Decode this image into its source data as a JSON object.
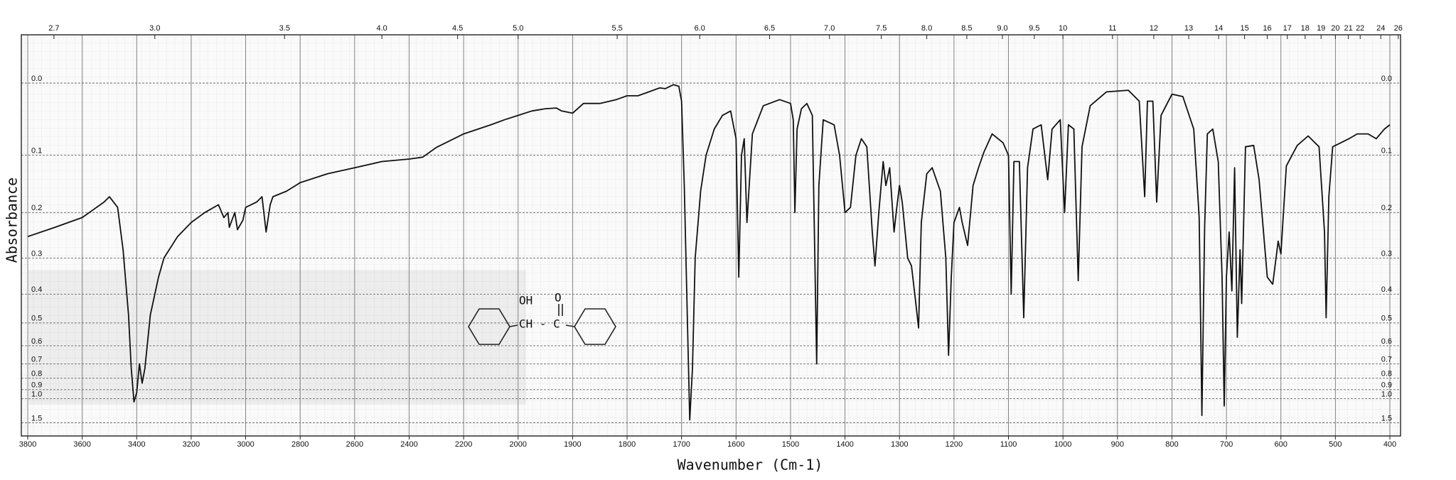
{
  "chart_data": {
    "type": "line",
    "x_label": "Wavenumber (Cm-1)",
    "y_label": "Absorbance",
    "color": "#111111",
    "grid": true,
    "xticks": [
      3800,
      3600,
      3400,
      3200,
      3000,
      2800,
      2600,
      2400,
      2200,
      2000,
      1900,
      1800,
      1700,
      1600,
      1500,
      1400,
      1300,
      1200,
      1100,
      1000,
      900,
      800,
      700,
      600,
      500,
      400
    ],
    "x2ticks": [
      2.7,
      {
        "value": 3,
        "label": "3.0"
      },
      3.5,
      {
        "value": 4,
        "label": "4.0"
      },
      4.5,
      {
        "value": 5,
        "label": "5.0"
      },
      5.5,
      {
        "value": 6,
        "label": "6.0"
      },
      6.5,
      {
        "value": 7,
        "label": "7.0"
      },
      7.5,
      {
        "value": 8,
        "label": "8.0"
      },
      8.5,
      {
        "value": 9,
        "label": "9.0"
      },
      9.5,
      10,
      11,
      12,
      13,
      14,
      15,
      16,
      17,
      18,
      19,
      20,
      21,
      22,
      24,
      26
    ],
    "yticks": [
      {
        "value": 0,
        "label": "0.0"
      },
      0.1,
      0.2,
      0.3,
      0.4,
      0.5,
      0.6,
      0.7,
      0.8,
      0.9,
      {
        "value": 1,
        "label": "1.0"
      },
      1.5
    ],
    "annotations": [
      "OH",
      "O",
      "CH - C"
    ],
    "x": [
      3800,
      3700,
      3600,
      3520,
      3500,
      3470,
      3450,
      3430,
      3420,
      3410,
      3400,
      3390,
      3380,
      3370,
      3350,
      3320,
      3300,
      3250,
      3200,
      3150,
      3100,
      3080,
      3065,
      3060,
      3040,
      3030,
      3010,
      3000,
      2980,
      2960,
      2940,
      2925,
      2910,
      2900,
      2850,
      2800,
      2700,
      2600,
      2500,
      2400,
      2350,
      2300,
      2200,
      2100,
      2050,
      2000,
      1975,
      1950,
      1930,
      1920,
      1900,
      1880,
      1850,
      1820,
      1800,
      1780,
      1760,
      1740,
      1730,
      1715,
      1705,
      1700,
      1695,
      1690,
      1685,
      1680,
      1675,
      1665,
      1655,
      1640,
      1625,
      1610,
      1600,
      1595,
      1590,
      1585,
      1580,
      1570,
      1550,
      1520,
      1500,
      1495,
      1492,
      1488,
      1480,
      1470,
      1460,
      1452,
      1448,
      1440,
      1420,
      1410,
      1400,
      1390,
      1380,
      1370,
      1360,
      1350,
      1345,
      1338,
      1330,
      1325,
      1318,
      1310,
      1305,
      1300,
      1295,
      1285,
      1278,
      1270,
      1265,
      1260,
      1250,
      1240,
      1225,
      1215,
      1210,
      1205,
      1200,
      1190,
      1185,
      1175,
      1165,
      1155,
      1145,
      1130,
      1110,
      1100,
      1095,
      1090,
      1080,
      1072,
      1065,
      1055,
      1040,
      1028,
      1020,
      1005,
      997,
      990,
      980,
      972,
      965,
      950,
      920,
      880,
      860,
      850,
      845,
      835,
      828,
      820,
      800,
      780,
      760,
      750,
      745,
      740,
      735,
      725,
      715,
      708,
      704,
      700,
      695,
      690,
      685,
      680,
      675,
      672,
      665,
      650,
      640,
      625,
      615,
      605,
      600,
      590,
      570,
      550,
      530,
      520,
      517,
      512,
      505,
      490,
      475,
      460,
      440,
      425,
      410,
      400
    ],
    "values": [
      0.25,
      0.23,
      0.21,
      0.18,
      0.17,
      0.19,
      0.28,
      0.47,
      0.73,
      1.04,
      0.93,
      0.7,
      0.84,
      0.73,
      0.47,
      0.35,
      0.3,
      0.25,
      0.22,
      0.2,
      0.185,
      0.21,
      0.2,
      0.23,
      0.2,
      0.235,
      0.215,
      0.19,
      0.185,
      0.18,
      0.17,
      0.24,
      0.185,
      0.17,
      0.16,
      0.145,
      0.13,
      0.12,
      0.11,
      0.106,
      0.103,
      0.088,
      0.068,
      0.055,
      0.048,
      0.042,
      0.036,
      0.033,
      0.032,
      0.036,
      0.039,
      0.026,
      0.026,
      0.021,
      0.016,
      0.016,
      0.011,
      0.006,
      0.007,
      0.002,
      0.004,
      0.023,
      0.15,
      0.43,
      1.4,
      0.73,
      0.3,
      0.16,
      0.1,
      0.061,
      0.042,
      0.036,
      0.075,
      0.35,
      0.1,
      0.075,
      0.22,
      0.068,
      0.029,
      0.021,
      0.026,
      0.048,
      0.2,
      0.061,
      0.033,
      0.026,
      0.042,
      0.7,
      0.15,
      0.048,
      0.055,
      0.1,
      0.2,
      0.19,
      0.1,
      0.075,
      0.087,
      0.24,
      0.32,
      0.2,
      0.11,
      0.15,
      0.12,
      0.24,
      0.19,
      0.15,
      0.18,
      0.3,
      0.32,
      0.43,
      0.52,
      0.22,
      0.13,
      0.12,
      0.16,
      0.3,
      0.65,
      0.35,
      0.22,
      0.19,
      0.22,
      0.27,
      0.15,
      0.12,
      0.095,
      0.068,
      0.081,
      0.1,
      0.4,
      0.11,
      0.11,
      0.48,
      0.12,
      0.061,
      0.055,
      0.14,
      0.061,
      0.048,
      0.2,
      0.055,
      0.061,
      0.36,
      0.087,
      0.029,
      0.011,
      0.009,
      0.023,
      0.17,
      0.023,
      0.023,
      0.18,
      0.042,
      0.014,
      0.017,
      0.061,
      0.21,
      1.28,
      0.23,
      0.068,
      0.061,
      0.11,
      0.35,
      1.1,
      0.35,
      0.24,
      0.39,
      0.12,
      0.56,
      0.28,
      0.43,
      0.087,
      0.085,
      0.14,
      0.35,
      0.37,
      0.26,
      0.29,
      0.117,
      0.085,
      0.071,
      0.087,
      0.24,
      0.48,
      0.17,
      0.087,
      0.081,
      0.075,
      0.068,
      0.068,
      0.075,
      0.061,
      0.055
    ]
  }
}
